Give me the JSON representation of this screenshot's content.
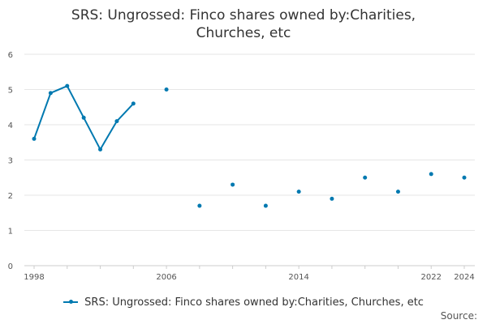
{
  "page_title_line1": "SRS: Ungrossed: Finco shares owned by:Charities,",
  "page_title_line2": "Churches, etc",
  "source_label": "Source:",
  "chart_data": {
    "type": "line",
    "title": "SRS: Ungrossed: Finco shares owned by:Charities, Churches, etc",
    "xlabel": "",
    "ylabel": "",
    "xlim": [
      1998,
      2024
    ],
    "ylim": [
      0,
      6
    ],
    "x_ticks": [
      1998,
      2006,
      2014,
      2022,
      2024
    ],
    "y_ticks": [
      0,
      1,
      2,
      3,
      4,
      5,
      6
    ],
    "grid": true,
    "legend_position": "bottom",
    "color": "#0079b0",
    "series": [
      {
        "name": "SRS: Ungrossed: Finco shares owned by:Charities, Churches, etc",
        "points": [
          {
            "x": 1998,
            "y": 3.6
          },
          {
            "x": 1999,
            "y": 4.9
          },
          {
            "x": 2000,
            "y": 5.1
          },
          {
            "x": 2001,
            "y": 4.2
          },
          {
            "x": 2002,
            "y": 3.3
          },
          {
            "x": 2003,
            "y": 4.1
          },
          {
            "x": 2004,
            "y": 4.6
          },
          {
            "x": 2006,
            "y": 5.0
          },
          {
            "x": 2008,
            "y": 1.7
          },
          {
            "x": 2010,
            "y": 2.3
          },
          {
            "x": 2012,
            "y": 1.7
          },
          {
            "x": 2014,
            "y": 2.1
          },
          {
            "x": 2016,
            "y": 1.9
          },
          {
            "x": 2018,
            "y": 2.5
          },
          {
            "x": 2020,
            "y": 2.1
          },
          {
            "x": 2022,
            "y": 2.6
          },
          {
            "x": 2024,
            "y": 2.5
          }
        ]
      }
    ]
  }
}
